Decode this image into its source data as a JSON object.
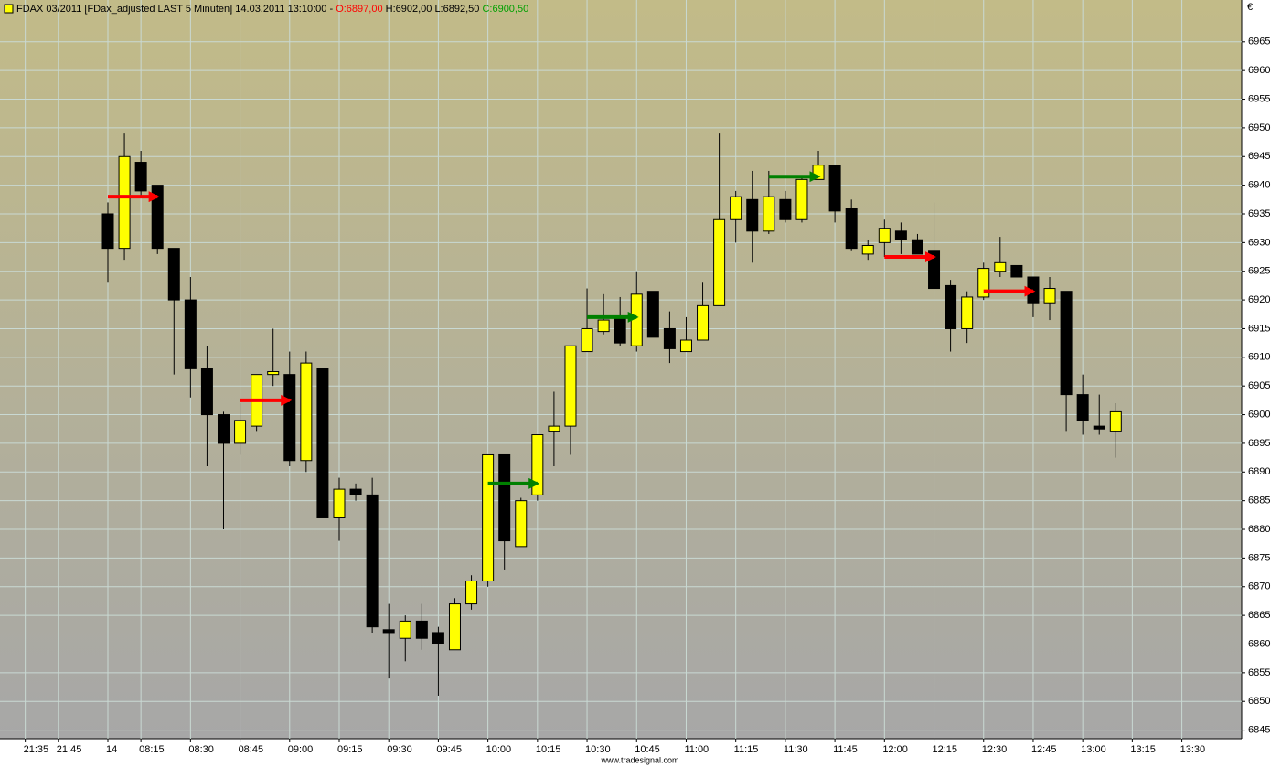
{
  "chart_data": {
    "type": "candlestick",
    "title": "FDAX 03/2011 [FDax_adjusted LAST 5 Minuten] 14.03.2011 13:10:00 -",
    "header_open": "O:6897,00",
    "header_high_low": "H:6902,00 L:6892,50",
    "header_close": "C:6900,50",
    "currency": "€",
    "footer": "www.tradesignal.com",
    "up_color": "#ffff00",
    "down_color": "#000000",
    "grid": true,
    "xlim": [
      -6.53,
      68.62
    ],
    "xticks": [
      {
        "value": -5,
        "label": "21:35"
      },
      {
        "value": -3,
        "label": "21:45"
      },
      {
        "value": 0,
        "label": "14"
      },
      {
        "value": 2,
        "label": "08:15"
      },
      {
        "value": 5,
        "label": "08:30"
      },
      {
        "value": 8,
        "label": "08:45"
      },
      {
        "value": 11,
        "label": "09:00"
      },
      {
        "value": 14,
        "label": "09:15"
      },
      {
        "value": 17,
        "label": "09:30"
      },
      {
        "value": 20,
        "label": "09:45"
      },
      {
        "value": 23,
        "label": "10:00"
      },
      {
        "value": 26,
        "label": "10:15"
      },
      {
        "value": 29,
        "label": "10:30"
      },
      {
        "value": 32,
        "label": "10:45"
      },
      {
        "value": 35,
        "label": "11:00"
      },
      {
        "value": 38,
        "label": "11:15"
      },
      {
        "value": 41,
        "label": "11:30"
      },
      {
        "value": 44,
        "label": "11:45"
      },
      {
        "value": 47,
        "label": "12:00"
      },
      {
        "value": 50,
        "label": "12:15"
      },
      {
        "value": 53,
        "label": "12:30"
      },
      {
        "value": 56,
        "label": "12:45"
      },
      {
        "value": 59,
        "label": "13:00"
      },
      {
        "value": 62,
        "label": "13:15"
      },
      {
        "value": 65,
        "label": "13:30"
      }
    ],
    "ylim": [
      6843.5,
      6972.3
    ],
    "yticks": [
      6845,
      6850,
      6855,
      6860,
      6865,
      6870,
      6875,
      6880,
      6885,
      6890,
      6895,
      6900,
      6905,
      6910,
      6915,
      6920,
      6925,
      6930,
      6935,
      6940,
      6945,
      6950,
      6955,
      6960,
      6965
    ],
    "open": [
      6935,
      6929,
      6944,
      6940,
      6929,
      6920,
      6908,
      6900,
      6895,
      6898,
      6907,
      6907,
      6892,
      6908,
      6882,
      6887,
      6886,
      6862.5,
      6861,
      6864,
      6862,
      6859,
      6867,
      6871,
      6893,
      6877,
      6886,
      6897,
      6898,
      6911,
      6914.5,
      6917,
      6912,
      6921.5,
      6915,
      6911,
      6913,
      6919,
      6934,
      6937.5,
      6932,
      6937.5,
      6934,
      6941,
      6943.5,
      6936,
      6928,
      6930,
      6932,
      6930.5,
      6928.5,
      6922.5,
      6915,
      6920.5,
      6925,
      6926,
      6924,
      6919.5,
      6921.5,
      6903.5,
      6898,
      6897
    ],
    "high": [
      6937,
      6949,
      6946,
      6940,
      6929,
      6924,
      6912,
      6900.5,
      6902,
      6907,
      6915,
      6911,
      6911,
      6908,
      6889,
      6888,
      6889,
      6867,
      6865,
      6867,
      6863,
      6868,
      6872,
      6893,
      6893,
      6885.5,
      6896.5,
      6904,
      6912,
      6922,
      6921,
      6920.5,
      6925,
      6921.5,
      6918,
      6917,
      6923,
      6949,
      6939,
      6942.5,
      6942.5,
      6939,
      6941.5,
      6946,
      6943.5,
      6937.5,
      6930.5,
      6934,
      6933.5,
      6931.5,
      6937,
      6923.5,
      6921.5,
      6926.5,
      6931,
      6926,
      6924,
      6924,
      6921.5,
      6907,
      6903.5,
      6902
    ],
    "low": [
      6923,
      6927,
      6938,
      6928,
      6907,
      6903,
      6891,
      6880,
      6893,
      6897,
      6905,
      6891,
      6890,
      6882,
      6878,
      6885,
      6862,
      6854,
      6857,
      6859,
      6851,
      6859,
      6866,
      6870,
      6873,
      6877,
      6885,
      6891,
      6893,
      6911,
      6914,
      6912,
      6911,
      6913.5,
      6909,
      6911,
      6913,
      6919,
      6930,
      6926.5,
      6931.5,
      6933.5,
      6933.5,
      6941,
      6933.5,
      6928.5,
      6927,
      6927.5,
      6928,
      6928,
      6922,
      6911,
      6912.5,
      6920,
      6924,
      6924,
      6917,
      6916.5,
      6897,
      6896.5,
      6896.5,
      6892.5
    ],
    "close": [
      6929,
      6945,
      6939,
      6929,
      6920,
      6908,
      6900,
      6895,
      6899,
      6907,
      6907.5,
      6892,
      6909,
      6882,
      6887,
      6886,
      6863,
      6862,
      6864,
      6861,
      6860,
      6867,
      6871,
      6893,
      6878,
      6885,
      6896.5,
      6898,
      6912,
      6915,
      6916.5,
      6912.5,
      6921,
      6913.5,
      6911.5,
      6913,
      6919,
      6934,
      6938,
      6932,
      6938,
      6934,
      6941,
      6943.5,
      6935.5,
      6929,
      6929.5,
      6932.5,
      6930.5,
      6928,
      6922,
      6915,
      6920.5,
      6925.5,
      6926.5,
      6924,
      6919.5,
      6922,
      6903.5,
      6899,
      6897.5,
      6900.5
    ],
    "signals": [
      {
        "x0": 0,
        "x1": 3,
        "y": 6938,
        "color": "#ff0000"
      },
      {
        "x0": 8,
        "x1": 11,
        "y": 6902.5,
        "color": "#ff0000"
      },
      {
        "x0": 23,
        "x1": 26,
        "y": 6888,
        "color": "#008000"
      },
      {
        "x0": 29,
        "x1": 32,
        "y": 6917,
        "color": "#008000"
      },
      {
        "x0": 40,
        "x1": 43,
        "y": 6941.5,
        "color": "#008000"
      },
      {
        "x0": 47,
        "x1": 50,
        "y": 6927.5,
        "color": "#ff0000"
      },
      {
        "x0": 53,
        "x1": 56,
        "y": 6921.5,
        "color": "#ff0000"
      }
    ]
  }
}
